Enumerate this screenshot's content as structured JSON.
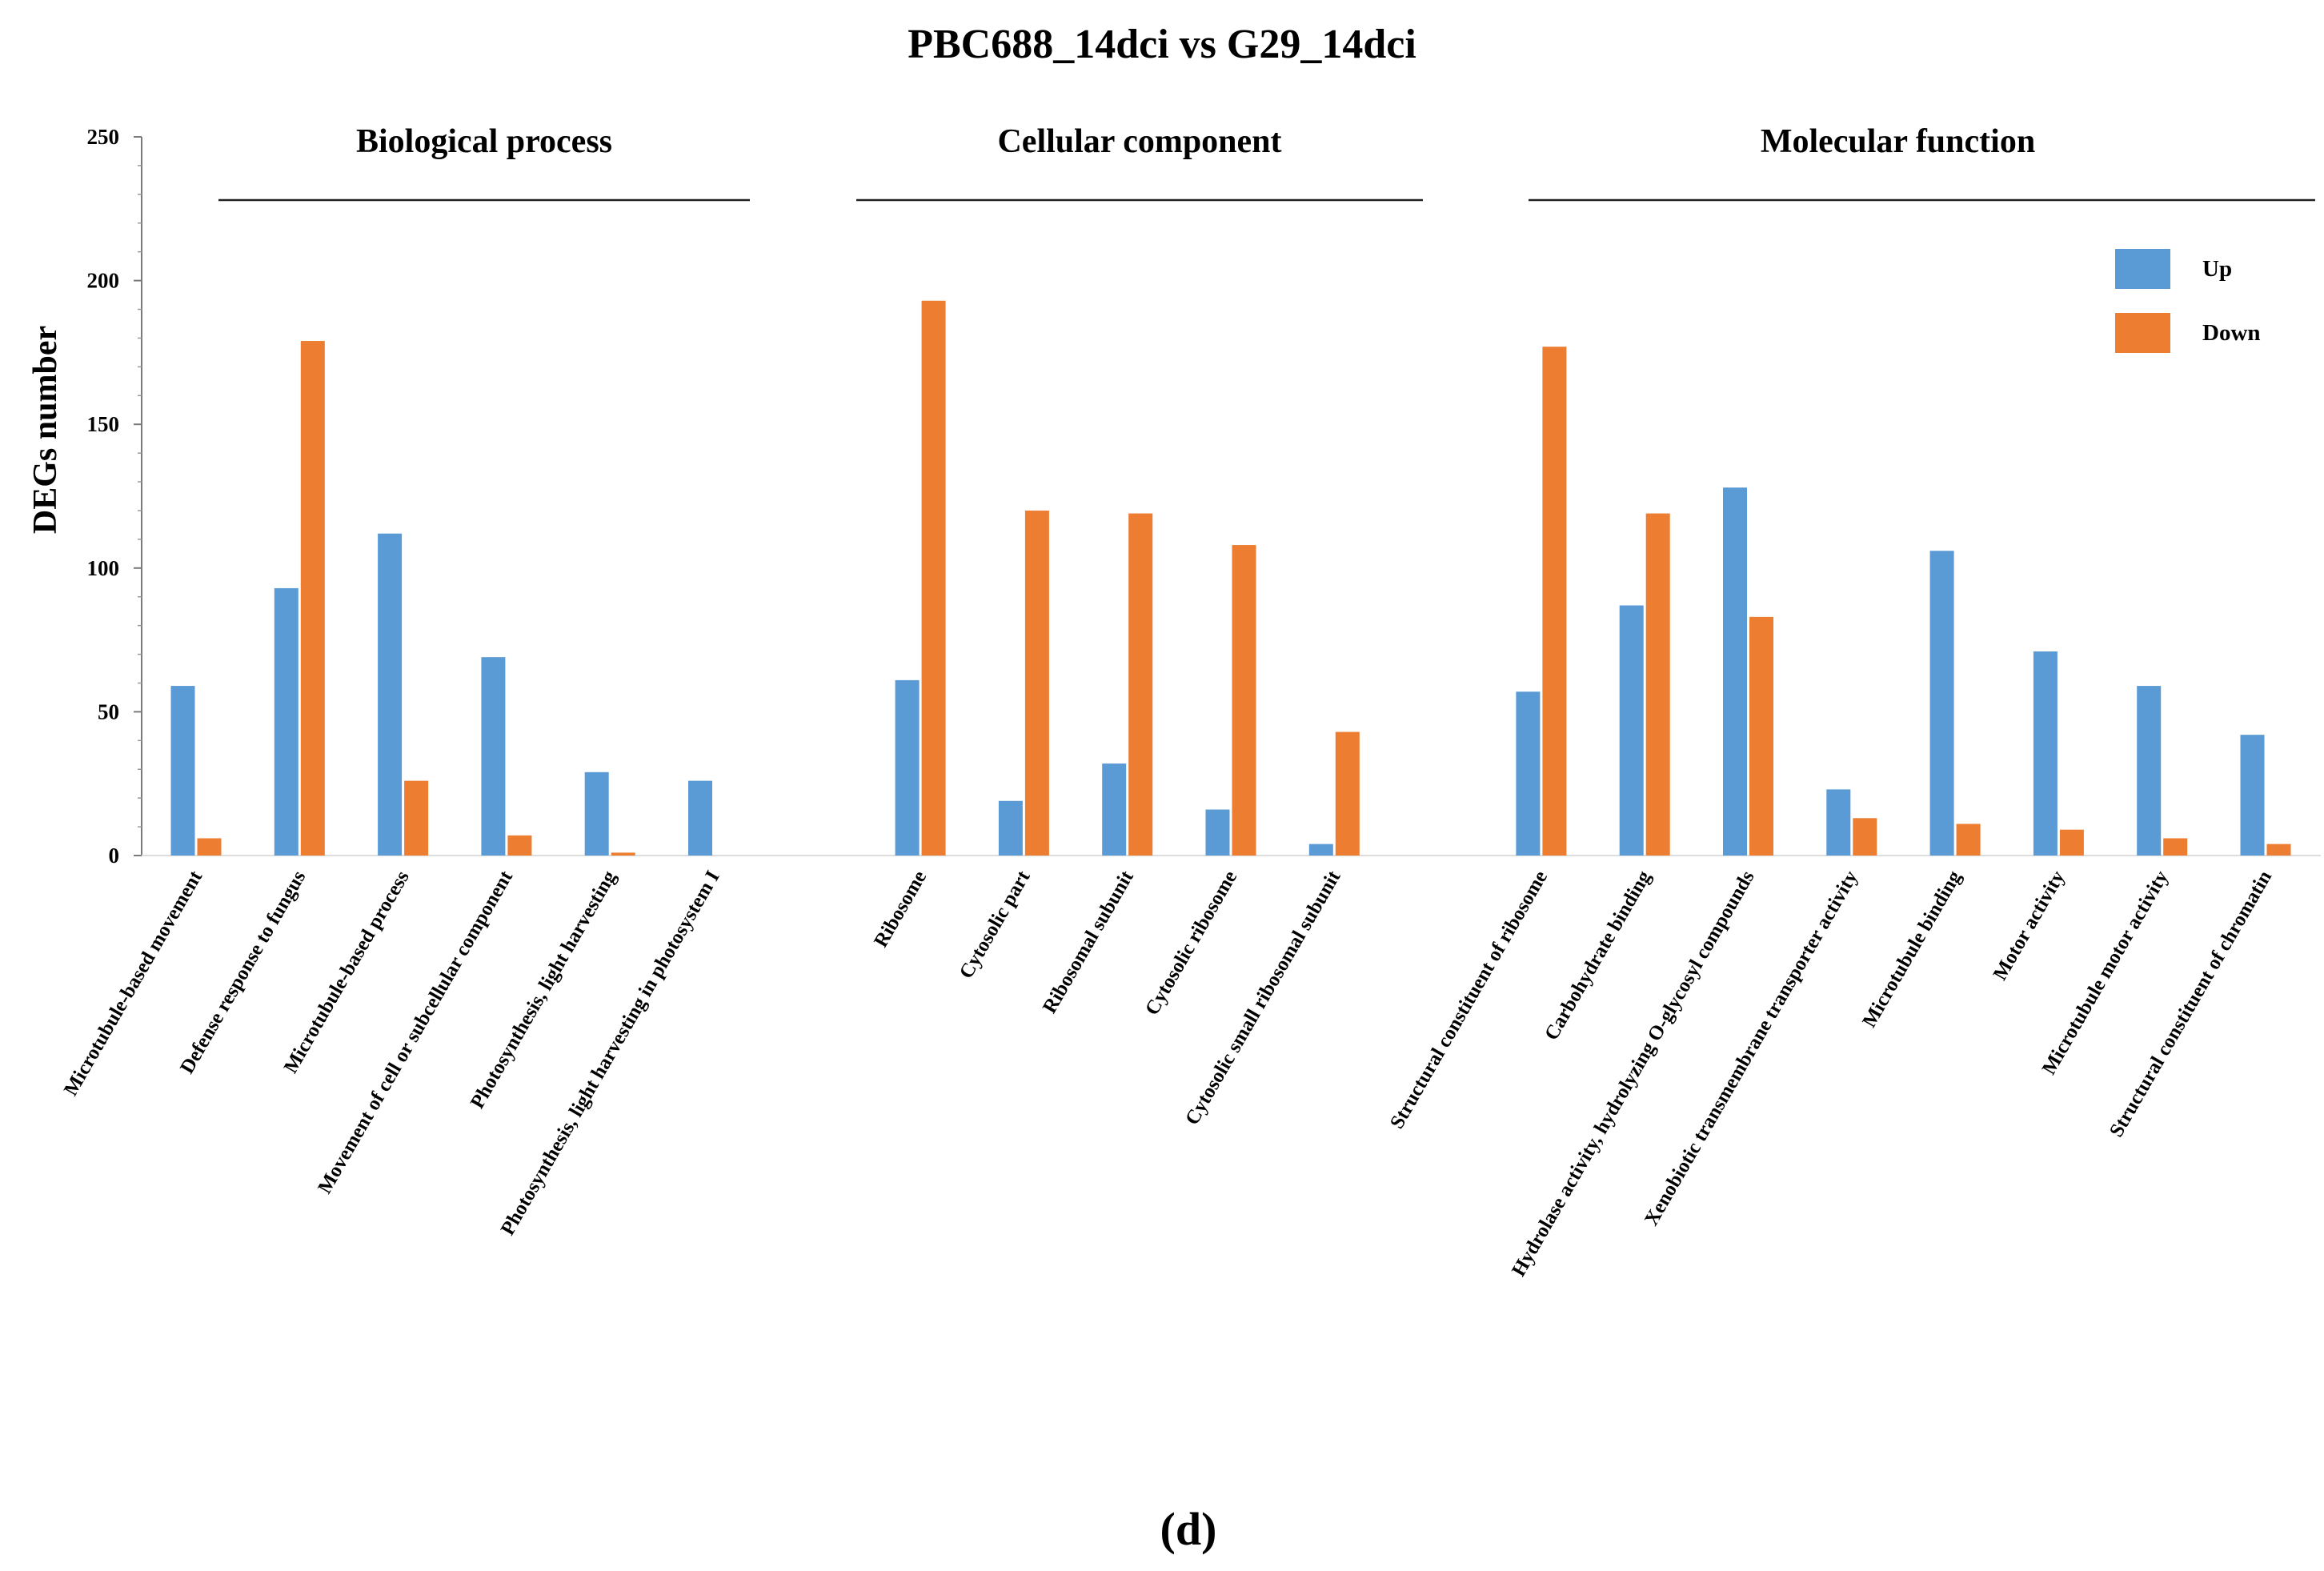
{
  "chart_data": {
    "type": "bar",
    "title": "PBC688_14dci vs G29_14dci",
    "panel_label": "(d)",
    "xlabel": "",
    "ylabel": "DEGs number",
    "ylim": [
      0,
      250
    ],
    "yticks": [
      0,
      50,
      100,
      150,
      200,
      250
    ],
    "legend_position": "top-right",
    "groups": [
      {
        "label": "Biological process",
        "start": 0,
        "end": 5
      },
      {
        "label": "Cellular component",
        "start": 6,
        "end": 10
      },
      {
        "label": "Molecular function",
        "start": 11,
        "end": 18
      }
    ],
    "categories": [
      "Microtubule-based movement",
      "Defense response to fungus",
      "Microtubule-based process",
      "Movement of cell or subcellular component",
      "Photosynthesis, light harvesting",
      "Photosynthesis, light harvesting in photosystem I",
      "Ribosome",
      "Cytosolic part",
      "Ribosomal subunit",
      "Cytosolic ribosome",
      "Cytosolic small ribosomal subunit",
      "Structural constituent of ribosome",
      "Carbohydrate binding",
      "Hydrolase activity, hydrolyzing O-glycosyl compounds",
      "Xenobiotic transmembrane transporter activity",
      "Microtubule binding",
      "Motor activity",
      "Microtubule motor activity",
      "Structural constituent of chromatin"
    ],
    "series": [
      {
        "name": "Up",
        "color": "#5B9BD5",
        "values": [
          59,
          93,
          112,
          69,
          29,
          26,
          61,
          19,
          32,
          16,
          4,
          57,
          87,
          128,
          23,
          106,
          71,
          59,
          42
        ]
      },
      {
        "name": "Down",
        "color": "#ED7D31",
        "values": [
          6,
          179,
          26,
          7,
          1,
          0,
          193,
          120,
          119,
          108,
          43,
          177,
          119,
          83,
          13,
          11,
          9,
          6,
          4
        ]
      }
    ]
  }
}
